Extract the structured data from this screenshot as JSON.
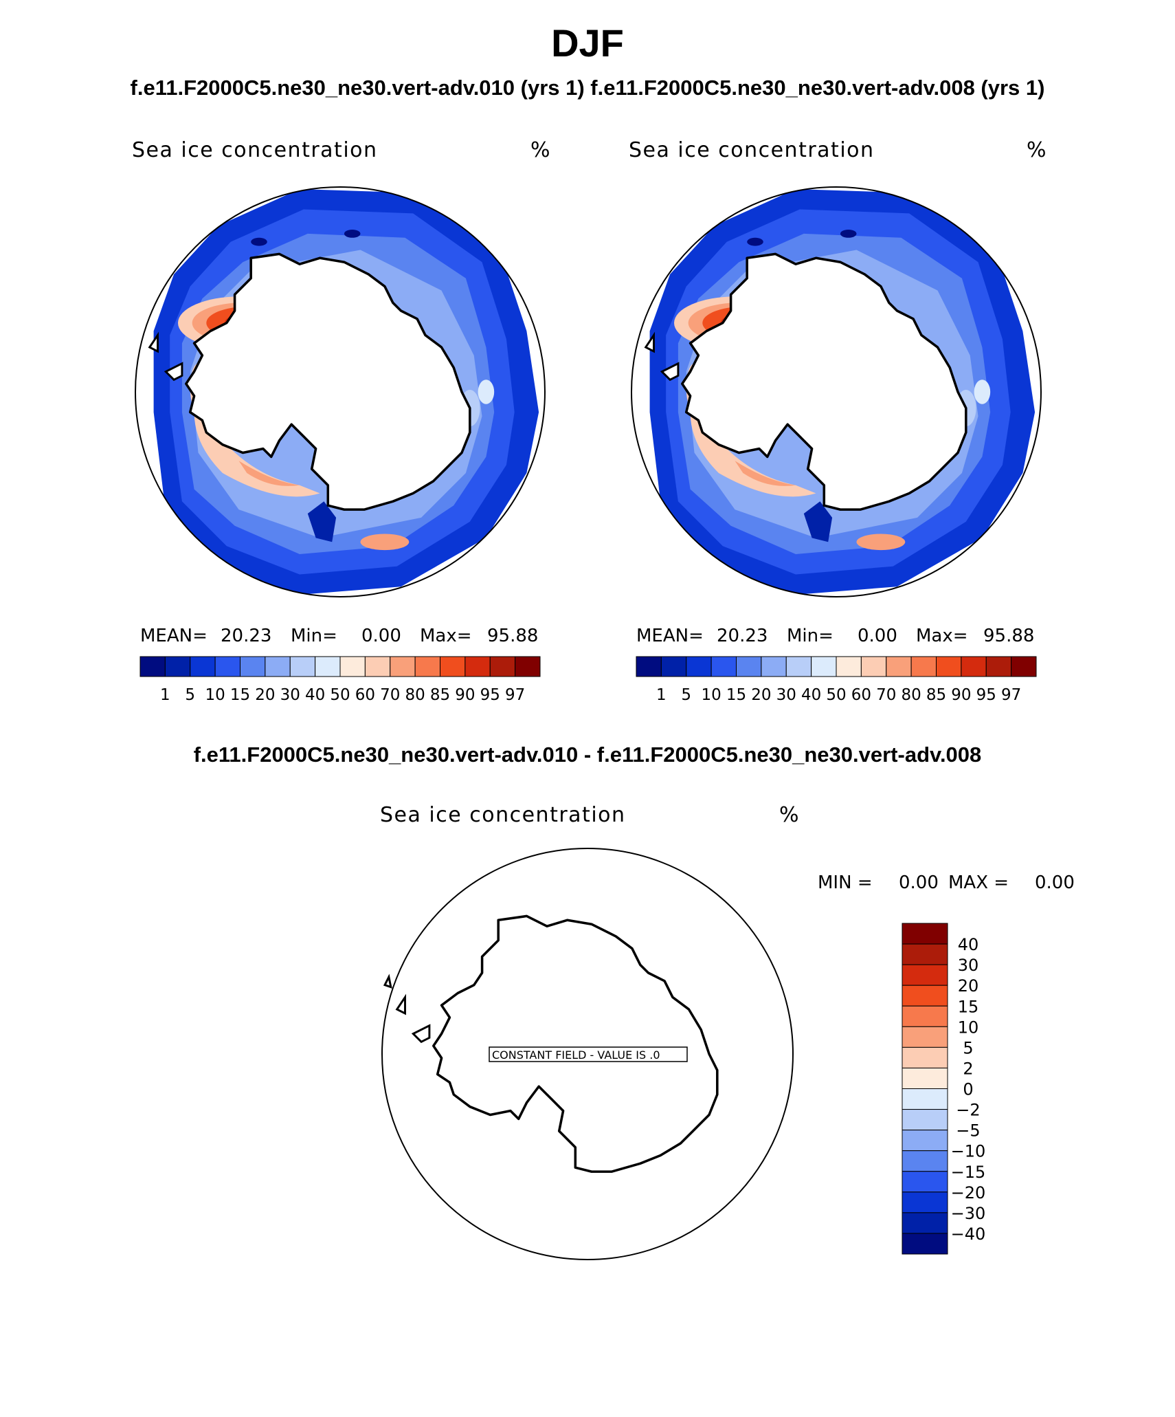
{
  "title": "DJF",
  "subtitle": "f.e11.F2000C5.ne30_ne30.vert-adv.010 (yrs 1) f.e11.F2000C5.ne30_ne30.vert-adv.008 (yrs 1)",
  "diff_title": "f.e11.F2000C5.ne30_ne30.vert-adv.010 - f.e11.F2000C5.ne30_ne30.vert-adv.008",
  "chart_data": [
    {
      "type": "heatmap",
      "projection": "south-polar-stereographic",
      "title": "Sea ice concentration",
      "units": "%",
      "stats": {
        "mean_label": "MEAN=",
        "mean": "20.23",
        "min_label": "Min=",
        "min": "0.00",
        "max_label": "Max=",
        "max": "95.88"
      },
      "colorbar_levels": [
        "1",
        "5",
        "10",
        "15",
        "20",
        "30",
        "40",
        "50",
        "60",
        "70",
        "80",
        "85",
        "90",
        "95",
        "97"
      ],
      "colorbar_colors": [
        "#000c80",
        "#0021a8",
        "#0a36d4",
        "#2a56ee",
        "#5a84f0",
        "#8cacf5",
        "#b8cef8",
        "#dcebfc",
        "#fdebdc",
        "#fccdb4",
        "#f9a07a",
        "#f7794c",
        "#f04e1e",
        "#d42b0e",
        "#ac1c0a",
        "#800000"
      ]
    },
    {
      "type": "heatmap",
      "projection": "south-polar-stereographic",
      "title": "Sea ice concentration",
      "units": "%",
      "stats": {
        "mean_label": "MEAN=",
        "mean": "20.23",
        "min_label": "Min=",
        "min": "0.00",
        "max_label": "Max=",
        "max": "95.88"
      },
      "colorbar_levels": [
        "1",
        "5",
        "10",
        "15",
        "20",
        "30",
        "40",
        "50",
        "60",
        "70",
        "80",
        "85",
        "90",
        "95",
        "97"
      ],
      "colorbar_colors": [
        "#000c80",
        "#0021a8",
        "#0a36d4",
        "#2a56ee",
        "#5a84f0",
        "#8cacf5",
        "#b8cef8",
        "#dcebfc",
        "#fdebdc",
        "#fccdb4",
        "#f9a07a",
        "#f7794c",
        "#f04e1e",
        "#d42b0e",
        "#ac1c0a",
        "#800000"
      ]
    },
    {
      "type": "heatmap",
      "projection": "south-polar-stereographic",
      "title": "Sea ice concentration",
      "units": "%",
      "stats": {
        "min_label": "MIN =",
        "min": "0.00",
        "max_label": "MAX =",
        "max": "0.00"
      },
      "annotation": "CONSTANT FIELD - VALUE IS .0",
      "colorbar_levels": [
        "40",
        "30",
        "20",
        "15",
        "10",
        "5",
        "2",
        "0",
        "−2",
        "−5",
        "−10",
        "−15",
        "−20",
        "−30",
        "−40"
      ],
      "colorbar_colors": [
        "#800000",
        "#ac1c0a",
        "#d42b0e",
        "#f04e1e",
        "#f7794c",
        "#f9a07a",
        "#fccdb4",
        "#fdebdc",
        "#dcebfc",
        "#b8cef8",
        "#8cacf5",
        "#5a84f0",
        "#2a56ee",
        "#0a36d4",
        "#0021a8",
        "#000c80"
      ]
    }
  ]
}
